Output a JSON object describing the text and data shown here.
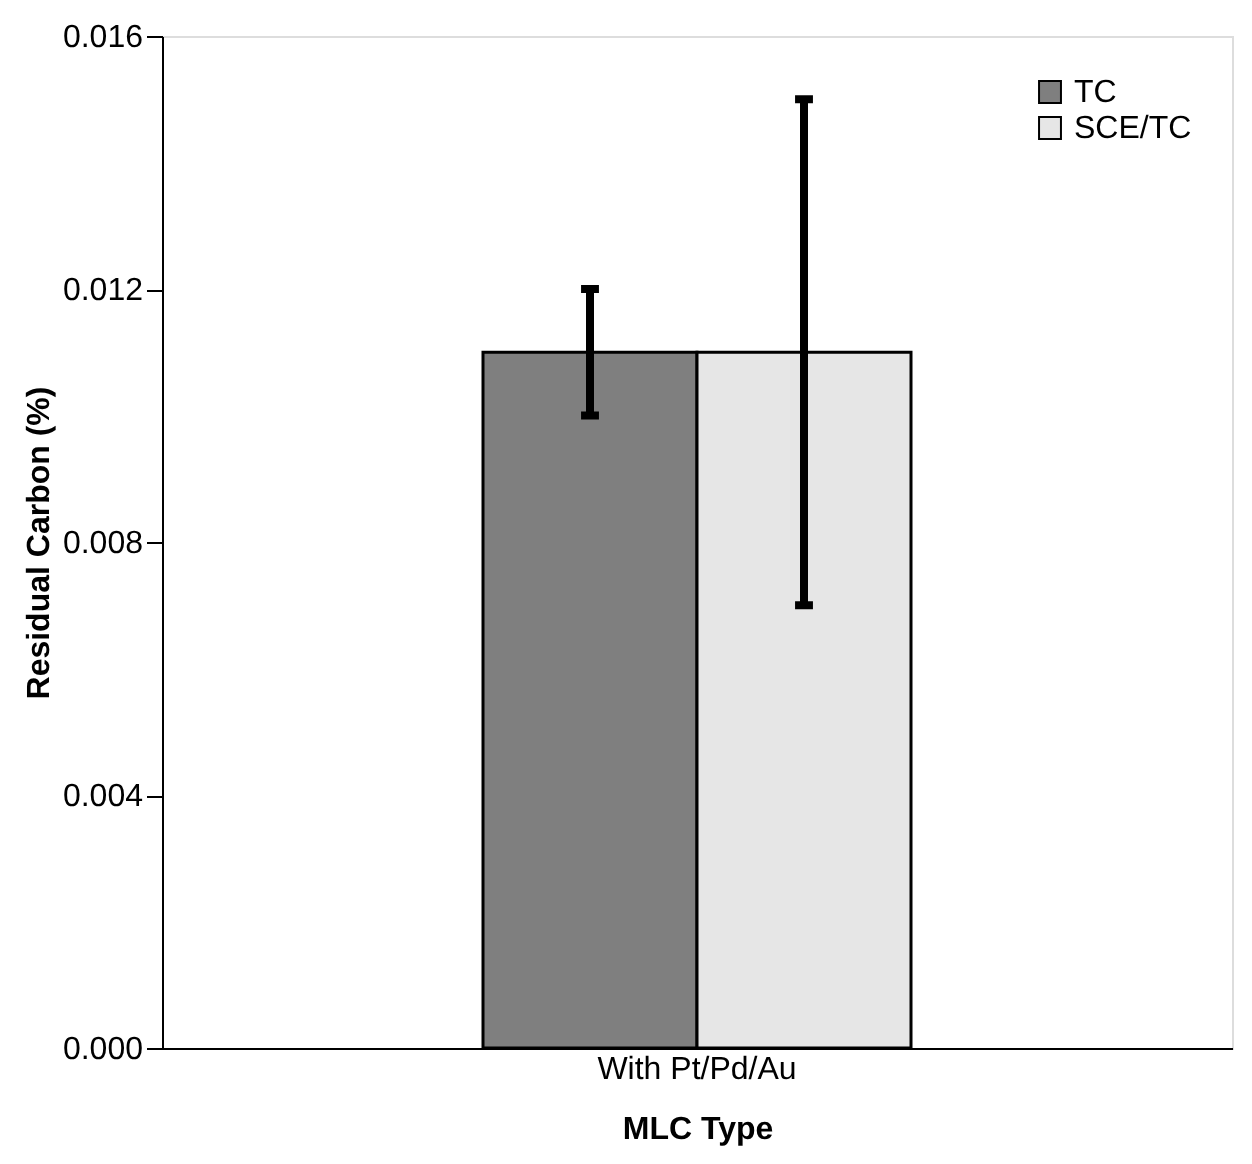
{
  "chart_data": {
    "type": "bar",
    "xlabel": "MLC Type",
    "ylabel": "Residual Carbon (%)",
    "categories": [
      "With Pt/Pd/Au"
    ],
    "series": [
      {
        "name": "TC",
        "color": "#7f7f7f",
        "values": [
          0.011
        ],
        "errors": [
          [
            0.01,
            0.012
          ]
        ]
      },
      {
        "name": "SCE/TC",
        "color": "#e6e6e6",
        "values": [
          0.011
        ],
        "errors": [
          [
            0.007,
            0.015
          ]
        ]
      }
    ],
    "ylim": [
      0,
      0.016
    ],
    "yticks": [
      {
        "value": 0,
        "label": "0.000"
      },
      0.004,
      0.008,
      0.012,
      0.016
    ],
    "grid": false,
    "legend": "top right"
  }
}
